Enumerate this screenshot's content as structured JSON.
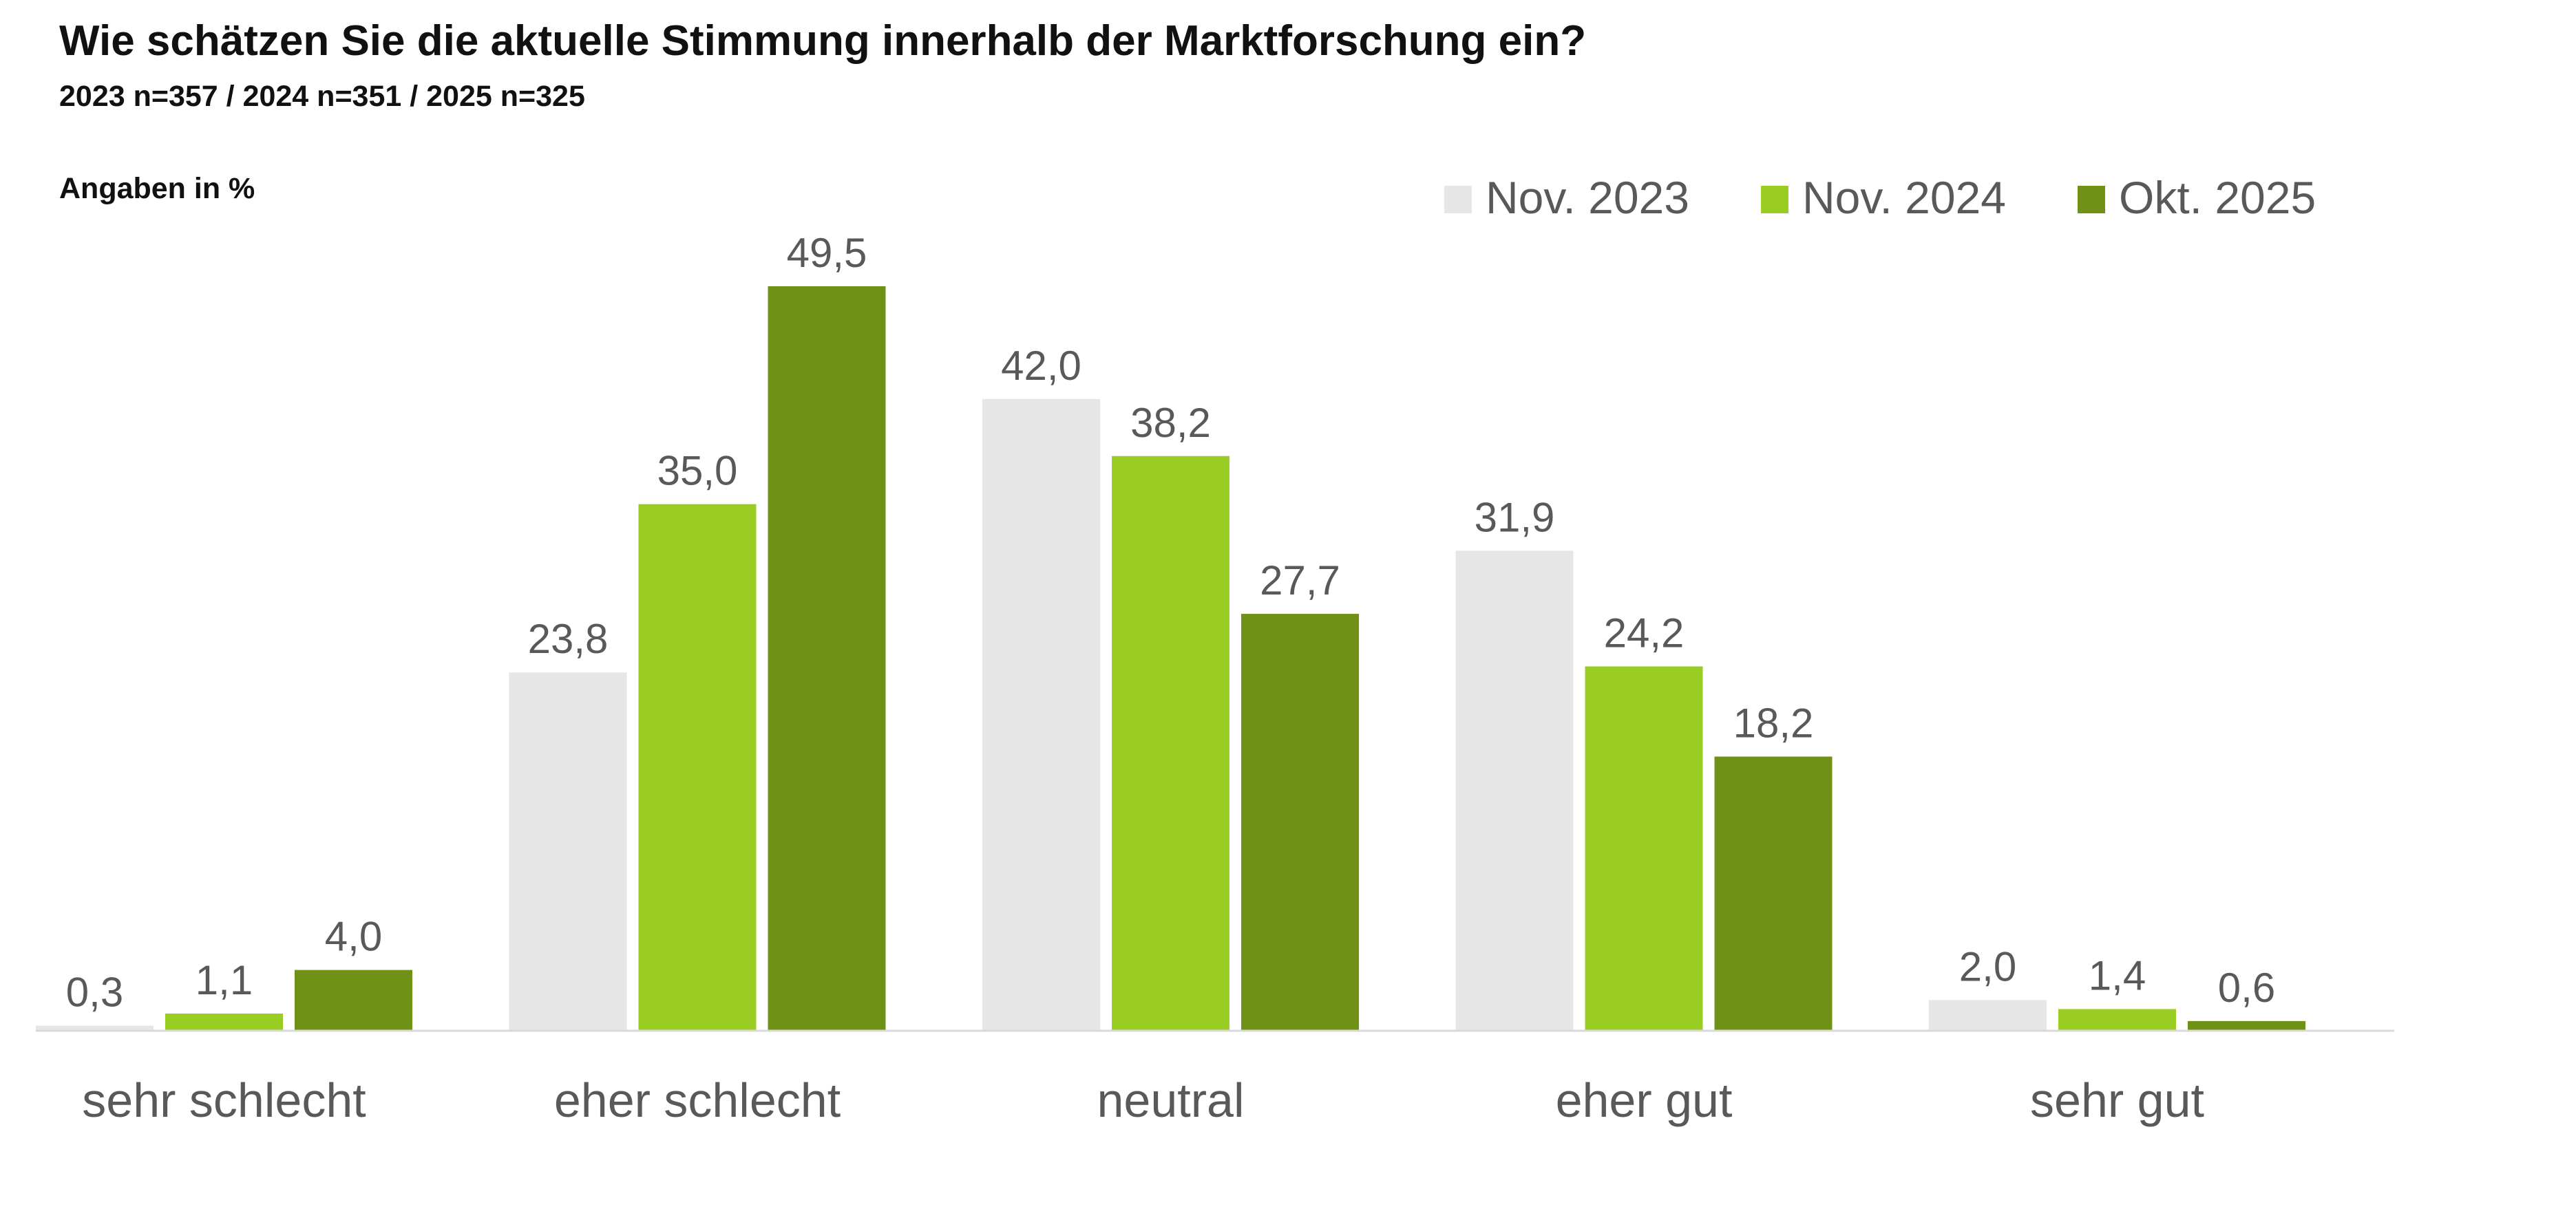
{
  "title": "Wie schätzen Sie die aktuelle Stimmung innerhalb der Marktforschung ein?",
  "subtitle": "2023 n=357 / 2024 n=351 / 2025 n=325",
  "unit_note": "Angaben in %",
  "chart_data": {
    "type": "bar",
    "categories": [
      "sehr schlecht",
      "eher schlecht",
      "neutral",
      "eher gut",
      "sehr gut"
    ],
    "series": [
      {
        "name": "Nov. 2023",
        "color": "#E6E6E6",
        "values": [
          0.3,
          23.8,
          42.0,
          31.9,
          2.0
        ],
        "labels": [
          "0,3",
          "23,8",
          "42,0",
          "31,9",
          "2,0"
        ]
      },
      {
        "name": "Nov. 2024",
        "color": "#9ACD24",
        "values": [
          1.1,
          35.0,
          38.2,
          24.2,
          1.4
        ],
        "labels": [
          "1,1",
          "35,0",
          "38,2",
          "24,2",
          "1,4"
        ]
      },
      {
        "name": "Okt. 2025",
        "color": "#6E9116",
        "values": [
          4.0,
          49.5,
          27.7,
          18.2,
          0.6
        ],
        "labels": [
          "4,0",
          "49,5",
          "27,7",
          "18,2",
          "0,6"
        ]
      }
    ],
    "ylim": [
      0,
      50
    ],
    "grid": false,
    "legend_position": "top-right",
    "xlabel": "",
    "ylabel": ""
  }
}
